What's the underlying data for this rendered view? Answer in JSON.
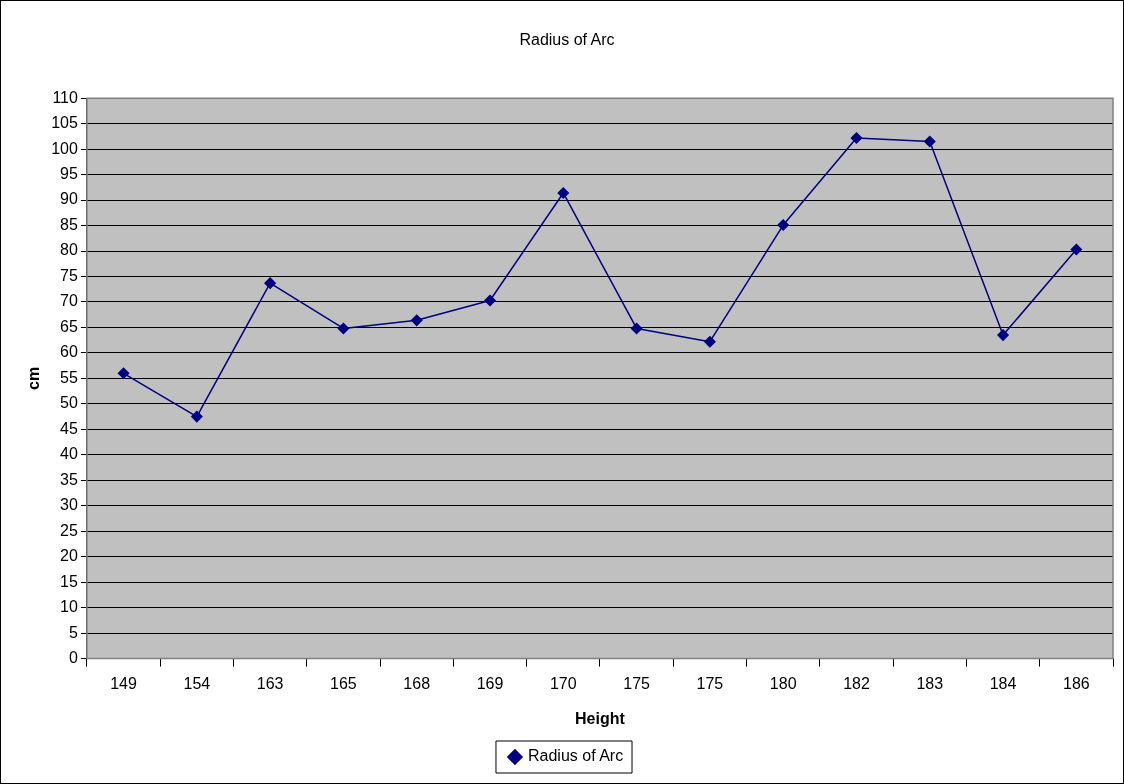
{
  "chart_data": {
    "type": "line",
    "title": "Radius of Arc",
    "xlabel": "Height",
    "ylabel": "cm",
    "categories": [
      "149",
      "154",
      "163",
      "165",
      "168",
      "169",
      "170",
      "175",
      "175",
      "180",
      "182",
      "183",
      "184",
      "186"
    ],
    "series": [
      {
        "name": "Radius of Arc",
        "color": "#000080",
        "values": [
          56,
          47.5,
          73.7,
          64.8,
          66.4,
          70.3,
          91.4,
          64.8,
          62.2,
          85.1,
          102.2,
          101.5,
          63.5,
          80.3
        ]
      }
    ],
    "ylim": [
      0,
      110
    ],
    "yticks": [
      0,
      5,
      10,
      15,
      20,
      25,
      30,
      35,
      40,
      45,
      50,
      55,
      60,
      65,
      70,
      75,
      80,
      85,
      90,
      95,
      100,
      105,
      110
    ],
    "grid": "y",
    "legend": "bottom",
    "marker": "diamond",
    "line_style": "solid"
  }
}
